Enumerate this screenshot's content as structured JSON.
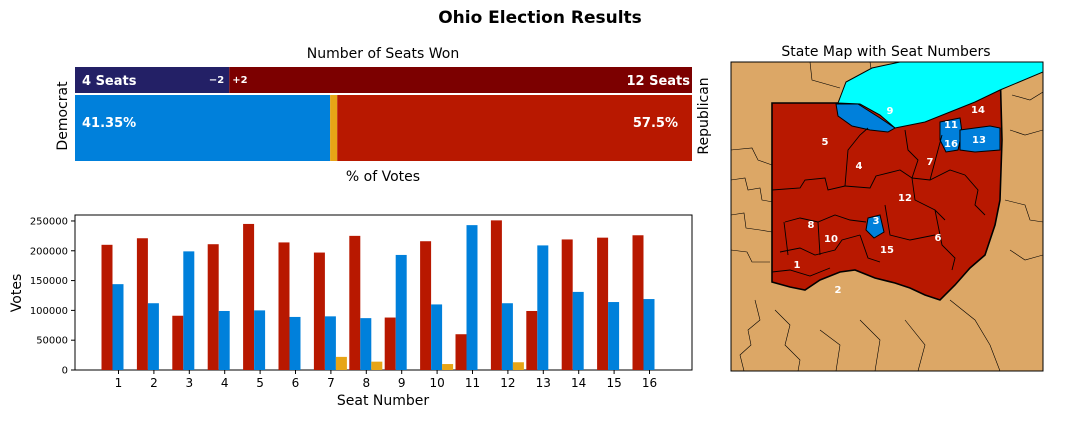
{
  "title": "Ohio Election Results",
  "colors": {
    "dem": "#0080db",
    "rep": "#b81800",
    "other": "#e7a516",
    "dem_dark": "#232066",
    "rep_dark": "#7c0000",
    "land": "#dca766",
    "lake": "#00ffff"
  },
  "chart_data": [
    {
      "type": "bar",
      "orientation": "horizontal-stacked",
      "title": "Number of Seats Won",
      "xlabel": "% of Votes",
      "left_label": "Democrat",
      "right_label": "Republican",
      "seats": {
        "dem": 4,
        "rep": 12,
        "dem_label": "4 Seats",
        "rep_label": "12 Seats",
        "dem_change": "−2",
        "rep_change": "+2"
      },
      "vote_share": {
        "dem": 41.35,
        "other": 1.15,
        "rep": 57.5,
        "dem_label": "41.35%",
        "rep_label": "57.5%"
      }
    },
    {
      "type": "bar",
      "xlabel": "Seat Number",
      "ylabel": "Votes",
      "ylim": [
        0,
        260000
      ],
      "yticks": [
        0,
        50000,
        100000,
        150000,
        200000,
        250000
      ],
      "categories": [
        "1",
        "2",
        "3",
        "4",
        "5",
        "6",
        "7",
        "8",
        "9",
        "10",
        "11",
        "12",
        "13",
        "14",
        "15",
        "16"
      ],
      "series": [
        {
          "color_key": "rep",
          "values": [
            210000,
            221000,
            91000,
            211000,
            245000,
            214000,
            197000,
            225000,
            88000,
            216000,
            60000,
            251000,
            99000,
            219000,
            222000,
            226000
          ]
        },
        {
          "color_key": "dem",
          "values": [
            144000,
            112000,
            199000,
            99000,
            100000,
            89000,
            90000,
            87000,
            193000,
            110000,
            243000,
            112000,
            209000,
            131000,
            114000,
            119000
          ]
        },
        {
          "color_key": "other",
          "values": [
            0,
            0,
            0,
            0,
            0,
            0,
            22000,
            14000,
            0,
            10000,
            0,
            13000,
            0,
            0,
            0,
            0
          ]
        }
      ]
    },
    {
      "type": "map",
      "title": "State Map with Seat Numbers",
      "district_labels": [
        "1",
        "2",
        "3",
        "4",
        "5",
        "6",
        "7",
        "8",
        "9",
        "10",
        "11",
        "12",
        "13",
        "14",
        "15",
        "16"
      ],
      "dem_districts": [
        "3",
        "9",
        "11",
        "13"
      ]
    }
  ]
}
